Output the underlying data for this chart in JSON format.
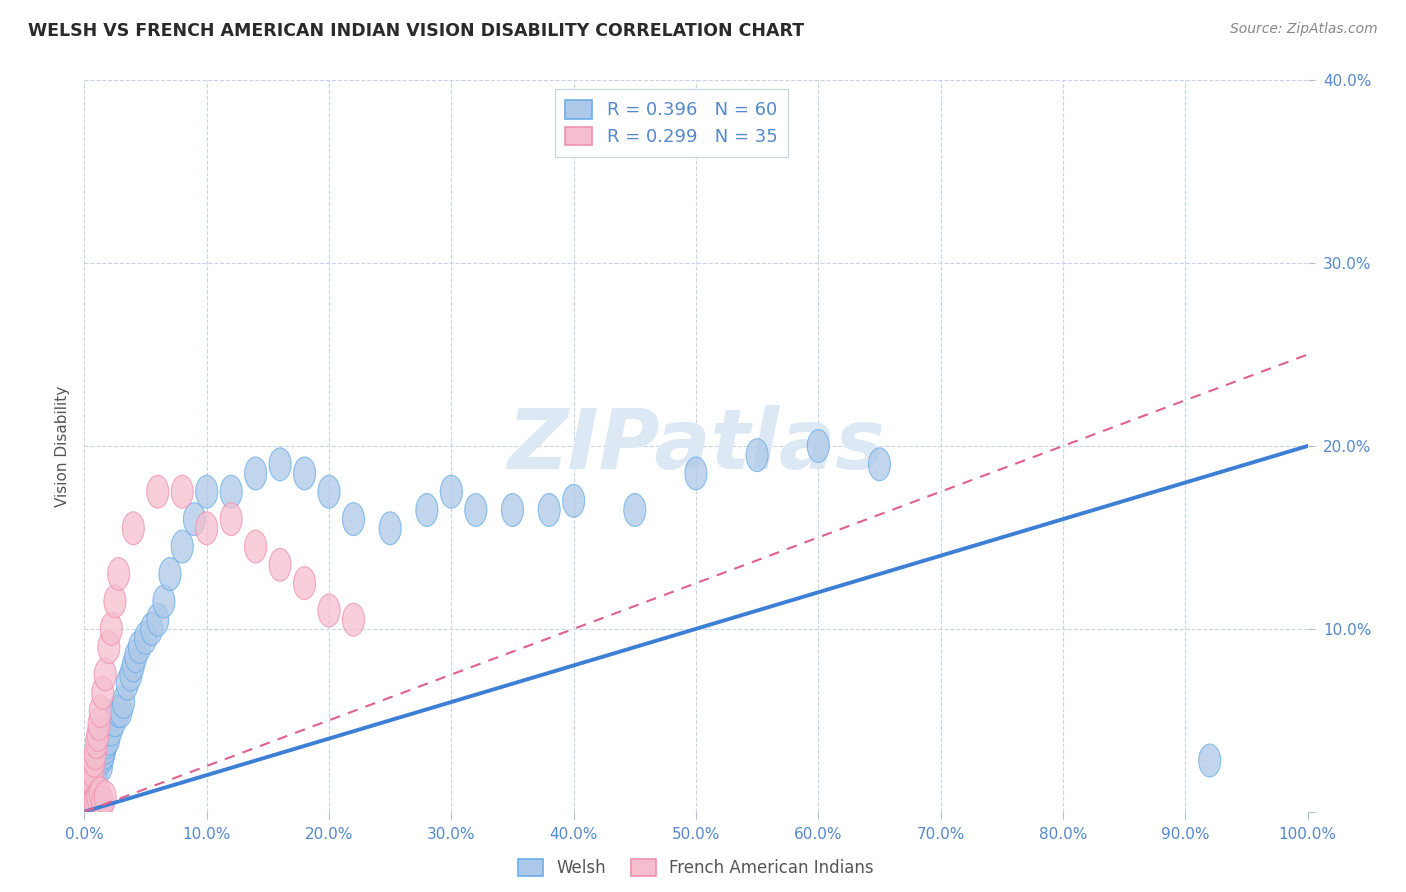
{
  "title": "WELSH VS FRENCH AMERICAN INDIAN VISION DISABILITY CORRELATION CHART",
  "source": "Source: ZipAtlas.com",
  "ylabel": "Vision Disability",
  "xlim": [
    0,
    1.0
  ],
  "ylim": [
    0,
    0.4
  ],
  "welsh_R": 0.396,
  "welsh_N": 60,
  "french_R": 0.299,
  "french_N": 35,
  "welsh_color": "#adc8e8",
  "welsh_edge_color": "#6aaee8",
  "welsh_line_color": "#3d7fd4",
  "french_color": "#f5bece",
  "french_edge_color": "#f090b0",
  "french_line_color": "#e06090",
  "background_color": "#ffffff",
  "grid_color": "#c8d4e8",
  "tick_color": "#7090c0",
  "label_color": "#5588cc",
  "watermark_color": "#dde8f5",
  "welsh_x": [
    0.002,
    0.003,
    0.004,
    0.005,
    0.006,
    0.007,
    0.008,
    0.009,
    0.01,
    0.011,
    0.012,
    0.013,
    0.014,
    0.015,
    0.016,
    0.017,
    0.018,
    0.02,
    0.022,
    0.025,
    0.028,
    0.03,
    0.032,
    0.035,
    0.038,
    0.04,
    0.042,
    0.045,
    0.05,
    0.055,
    0.06,
    0.065,
    0.07,
    0.08,
    0.09,
    0.1,
    0.12,
    0.14,
    0.16,
    0.18,
    0.2,
    0.22,
    0.25,
    0.28,
    0.3,
    0.32,
    0.35,
    0.38,
    0.4,
    0.45,
    0.5,
    0.55,
    0.6,
    0.65,
    0.003,
    0.005,
    0.007,
    0.009,
    0.012,
    0.92
  ],
  "welsh_y": [
    0.005,
    0.008,
    0.01,
    0.01,
    0.012,
    0.015,
    0.018,
    0.02,
    0.022,
    0.025,
    0.028,
    0.03,
    0.025,
    0.03,
    0.032,
    0.035,
    0.038,
    0.04,
    0.045,
    0.05,
    0.055,
    0.055,
    0.06,
    0.07,
    0.075,
    0.08,
    0.085,
    0.09,
    0.095,
    0.1,
    0.105,
    0.115,
    0.13,
    0.145,
    0.16,
    0.175,
    0.175,
    0.185,
    0.19,
    0.185,
    0.175,
    0.16,
    0.155,
    0.165,
    0.175,
    0.165,
    0.165,
    0.165,
    0.17,
    0.165,
    0.185,
    0.195,
    0.2,
    0.19,
    0.003,
    0.005,
    0.003,
    0.006,
    0.004,
    0.028
  ],
  "french_x": [
    0.002,
    0.003,
    0.004,
    0.005,
    0.006,
    0.007,
    0.008,
    0.009,
    0.01,
    0.011,
    0.012,
    0.013,
    0.015,
    0.017,
    0.02,
    0.022,
    0.025,
    0.028,
    0.005,
    0.007,
    0.009,
    0.011,
    0.013,
    0.015,
    0.017,
    0.04,
    0.06,
    0.08,
    0.1,
    0.12,
    0.14,
    0.16,
    0.18,
    0.2,
    0.22
  ],
  "french_y": [
    0.005,
    0.008,
    0.01,
    0.015,
    0.018,
    0.022,
    0.028,
    0.032,
    0.038,
    0.042,
    0.048,
    0.055,
    0.065,
    0.075,
    0.09,
    0.1,
    0.115,
    0.13,
    0.003,
    0.004,
    0.006,
    0.008,
    0.01,
    0.005,
    0.008,
    0.155,
    0.175,
    0.175,
    0.155,
    0.16,
    0.145,
    0.135,
    0.125,
    0.11,
    0.105
  ],
  "welsh_line_x": [
    0.0,
    1.0
  ],
  "welsh_line_y": [
    0.0,
    0.2
  ],
  "french_line_x": [
    0.0,
    1.0
  ],
  "french_line_y": [
    0.0,
    0.25
  ]
}
